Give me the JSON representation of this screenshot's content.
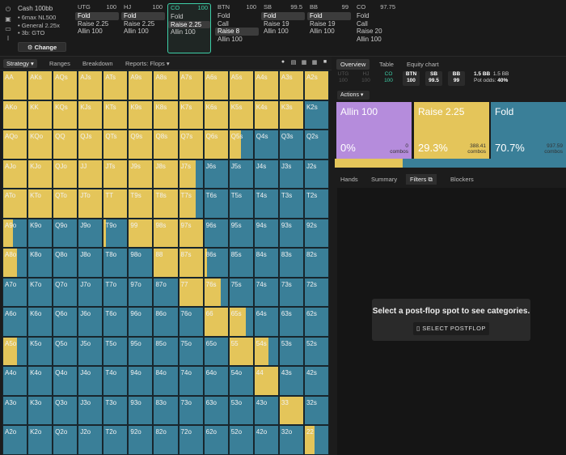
{
  "colors": {
    "fold": "#3a7f98",
    "raise": "#e4c55a",
    "allin": "#b58cdc",
    "accent": "#3ecfa8"
  },
  "icons": [
    "power-icon",
    "save-icon",
    "gamepad-icon",
    "text-cursor-icon"
  ],
  "game": {
    "title": "Cash 100bb",
    "lines": [
      "6max NL500",
      "General 2.25x",
      "3b: GTO"
    ],
    "change_label": "Change"
  },
  "positions": [
    {
      "name": "UTG",
      "stack": "100",
      "actions": [
        "Fold",
        "Raise 2.25",
        "Allin 100"
      ],
      "selected": 0
    },
    {
      "name": "HJ",
      "stack": "100",
      "actions": [
        "Fold",
        "Raise 2.25",
        "Allin 100"
      ],
      "selected": 0
    },
    {
      "name": "CO",
      "stack": "100",
      "actions": [
        "Fold",
        "Raise 2.25",
        "Allin 100"
      ],
      "selected": 1
    },
    {
      "name": "BTN",
      "stack": "100",
      "actions": [
        "Fold",
        "Call",
        "Raise 8",
        "Allin 100"
      ],
      "selected": 2
    },
    {
      "name": "SB",
      "stack": "99.5",
      "actions": [
        "Fold",
        "Raise 19",
        "Allin 100"
      ],
      "selected": 0
    },
    {
      "name": "BB",
      "stack": "99",
      "actions": [
        "Fold",
        "Raise 19",
        "Allin 100"
      ],
      "selected": 0
    },
    {
      "name": "CO",
      "stack": "97.75",
      "actions": [
        "Fold",
        "Call",
        "Raise 20",
        "Allin 100"
      ],
      "selected": -1
    }
  ],
  "toolbar": {
    "strategy": "Strategy",
    "ranges": "Ranges",
    "breakdown": "Breakdown",
    "reports": "Reports: Flops"
  },
  "right_tabs": {
    "overview": "Overview",
    "table": "Table",
    "equity": "Equity chart"
  },
  "stack_row": [
    {
      "n": "UTG",
      "v": "100",
      "state": "dim"
    },
    {
      "n": "HJ",
      "v": "100",
      "state": "dim"
    },
    {
      "n": "CO",
      "v": "100",
      "state": "act"
    },
    {
      "n": "BTN",
      "v": "100",
      "state": "on"
    },
    {
      "n": "SB",
      "v": "99.5",
      "state": "on"
    },
    {
      "n": "BB",
      "v": "99",
      "state": "on"
    }
  ],
  "pot": {
    "pot": "1.5 BB",
    "pot2": "1.5 BB",
    "odds_label": "Pot odds:",
    "odds": "40%"
  },
  "actions_label": "Actions",
  "action_boxes": [
    {
      "name": "Allin 100",
      "pct": "0%",
      "combos": "0",
      "combos_label": "combos",
      "fill": 0
    },
    {
      "name": "Raise 2.25",
      "pct": "29.3%",
      "combos": "388.41",
      "combos_label": "combos",
      "fill": 1
    },
    {
      "name": "Fold",
      "pct": "70.7%",
      "combos": "937.59",
      "combos_label": "combos",
      "fill": 2
    }
  ],
  "raise_share": 0.293,
  "filter_tabs": {
    "hands": "Hands",
    "summary": "Summary",
    "filters": "Filters",
    "blockers": "Blockers"
  },
  "filter_msg": "Select a post-flop spot to see categories.",
  "filter_btn": "SELECT POSTFLOP",
  "grid": {
    "labels": [
      [
        "AA",
        "AKs",
        "AQs",
        "AJs",
        "ATs",
        "A9s",
        "A8s",
        "A7s",
        "A6s",
        "A5s",
        "A4s",
        "A3s",
        "A2s"
      ],
      [
        "AKo",
        "KK",
        "KQs",
        "KJs",
        "KTs",
        "K9s",
        "K8s",
        "K7s",
        "K6s",
        "K5s",
        "K4s",
        "K3s",
        "K2s"
      ],
      [
        "AQo",
        "KQo",
        "QQ",
        "QJs",
        "QTs",
        "Q9s",
        "Q8s",
        "Q7s",
        "Q6s",
        "Q5s",
        "Q4s",
        "Q3s",
        "Q2s"
      ],
      [
        "AJo",
        "KJo",
        "QJo",
        "JJ",
        "JTs",
        "J9s",
        "J8s",
        "J7s",
        "J6s",
        "J5s",
        "J4s",
        "J3s",
        "J2s"
      ],
      [
        "ATo",
        "KTo",
        "QTo",
        "JTo",
        "TT",
        "T9s",
        "T8s",
        "T7s",
        "T6s",
        "T5s",
        "T4s",
        "T3s",
        "T2s"
      ],
      [
        "A9o",
        "K9o",
        "Q9o",
        "J9o",
        "T9o",
        "99",
        "98s",
        "97s",
        "96s",
        "95s",
        "94s",
        "93s",
        "92s"
      ],
      [
        "A8o",
        "K8o",
        "Q8o",
        "J8o",
        "T8o",
        "98o",
        "88",
        "87s",
        "86s",
        "85s",
        "84s",
        "83s",
        "82s"
      ],
      [
        "A7o",
        "K7o",
        "Q7o",
        "J7o",
        "T7o",
        "97o",
        "87o",
        "77",
        "76s",
        "75s",
        "74s",
        "73s",
        "72s"
      ],
      [
        "A6o",
        "K6o",
        "Q6o",
        "J6o",
        "T6o",
        "96o",
        "86o",
        "76o",
        "66",
        "65s",
        "64s",
        "63s",
        "62s"
      ],
      [
        "A5o",
        "K5o",
        "Q5o",
        "J5o",
        "T5o",
        "95o",
        "85o",
        "75o",
        "65o",
        "55",
        "54s",
        "53s",
        "52s"
      ],
      [
        "A4o",
        "K4o",
        "Q4o",
        "J4o",
        "T4o",
        "94o",
        "84o",
        "74o",
        "64o",
        "54o",
        "44",
        "43s",
        "42s"
      ],
      [
        "A3o",
        "K3o",
        "Q3o",
        "J3o",
        "T3o",
        "93o",
        "83o",
        "73o",
        "63o",
        "53o",
        "43o",
        "33",
        "32s"
      ],
      [
        "A2o",
        "K2o",
        "Q2o",
        "J2o",
        "T2o",
        "92o",
        "82o",
        "72o",
        "62o",
        "52o",
        "42o",
        "32o",
        "22"
      ]
    ],
    "raise": [
      [
        1,
        1,
        1,
        1,
        1,
        1,
        1,
        1,
        1,
        1,
        1,
        1,
        1
      ],
      [
        1,
        1,
        1,
        1,
        1,
        1,
        1,
        1,
        1,
        1,
        1,
        1,
        0
      ],
      [
        1,
        1,
        1,
        1,
        1,
        1,
        1,
        1,
        1,
        0.5,
        0,
        0,
        0
      ],
      [
        1,
        1,
        1,
        1,
        1,
        1,
        1,
        0.7,
        0,
        0,
        0,
        0,
        0
      ],
      [
        1,
        1,
        1,
        1,
        1,
        1,
        1,
        0.7,
        0,
        0,
        0,
        0,
        0
      ],
      [
        0.4,
        0,
        0,
        0,
        0.1,
        1,
        1,
        1,
        0,
        0,
        0,
        0,
        0
      ],
      [
        0.6,
        0,
        0,
        0,
        0,
        0,
        1,
        1,
        0.1,
        0,
        0,
        0,
        0
      ],
      [
        0,
        0,
        0,
        0,
        0,
        0,
        0,
        1,
        0.7,
        0,
        0,
        0,
        0
      ],
      [
        0,
        0,
        0,
        0,
        0,
        0,
        0,
        0,
        1,
        0.7,
        0,
        0,
        0
      ],
      [
        0.6,
        0,
        0,
        0,
        0,
        0,
        0,
        0,
        0,
        1,
        0.6,
        0,
        0
      ],
      [
        0,
        0,
        0,
        0,
        0,
        0,
        0,
        0,
        0,
        0,
        1,
        0,
        0
      ],
      [
        0,
        0,
        0,
        0,
        0,
        0,
        0,
        0,
        0,
        0,
        0,
        1,
        0
      ],
      [
        0,
        0,
        0,
        0,
        0,
        0,
        0,
        0,
        0,
        0,
        0,
        0,
        0.4
      ]
    ]
  }
}
